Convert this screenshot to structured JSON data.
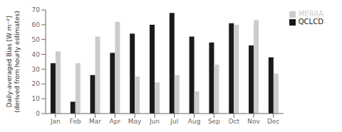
{
  "chart_data": {
    "type": "bar",
    "categories": [
      "Jan",
      "Feb",
      "Mar",
      "Apr",
      "May",
      "Jun",
      "Jul",
      "Aug",
      "Sep",
      "Oct",
      "Nov",
      "Dec"
    ],
    "series": [
      {
        "name": "QCLCD",
        "color": "#1a1a1a",
        "values": [
          34,
          8,
          26,
          41,
          54,
          60,
          68,
          52,
          48,
          61,
          46,
          38
        ]
      },
      {
        "name": "MERRA",
        "color": "#cccccc",
        "values": [
          42,
          34,
          52,
          62,
          25,
          21,
          26,
          15,
          33,
          60,
          63,
          27
        ]
      }
    ],
    "ylabel": "Daily-averaged Bias [W m⁻²]\n(derived from hourly estimates)",
    "ylim": [
      0,
      70
    ],
    "yticks": [
      0,
      10,
      20,
      30,
      40,
      50,
      60,
      70
    ],
    "grid": false,
    "legend": "upper right"
  }
}
